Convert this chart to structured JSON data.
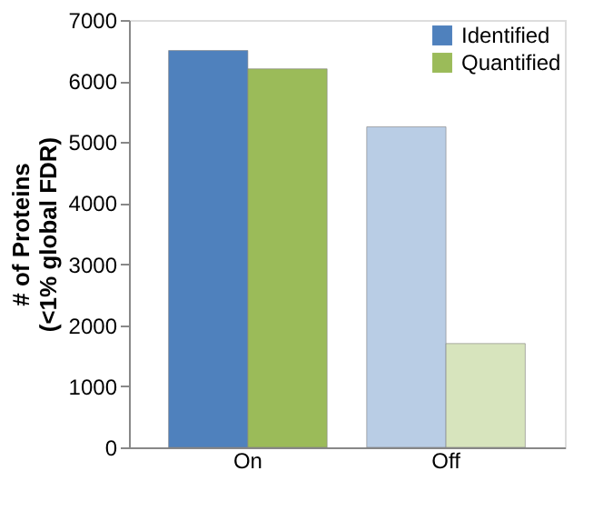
{
  "chart_data": {
    "type": "bar",
    "ylabel": "# of Proteins\n(<1% global FDR)",
    "categories": [
      "On",
      "Off"
    ],
    "series": [
      {
        "name": "Identified",
        "color": "#4f81bd",
        "colors": [
          "#4f81bd",
          "#b9cde5"
        ],
        "values": [
          6500,
          5250
        ]
      },
      {
        "name": "Quantified",
        "color": "#9bbb59",
        "colors": [
          "#9bbb59",
          "#d7e4bd"
        ],
        "values": [
          6200,
          1700
        ]
      }
    ],
    "ylim": [
      0,
      7000
    ],
    "yticks": [
      0,
      1000,
      2000,
      3000,
      4000,
      5000,
      6000,
      7000
    ],
    "grid": false,
    "legend": "top right"
  }
}
